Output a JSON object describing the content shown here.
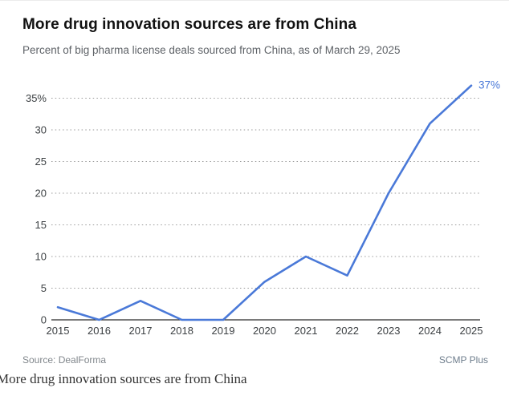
{
  "card": {
    "title": "More drug innovation sources are from China",
    "subtitle": "Percent of big pharma license deals sourced from China, as of March 29, 2025",
    "source": "Source: DealForma",
    "brand": "SCMP Plus"
  },
  "caption": "More drug innovation sources are from China",
  "chart_data": {
    "type": "line",
    "title": "More drug innovation sources are from China",
    "subtitle": "Percent of big pharma license deals sourced from China, as of March 29, 2025",
    "x": [
      2015,
      2016,
      2017,
      2018,
      2019,
      2020,
      2021,
      2022,
      2023,
      2024,
      2025
    ],
    "series": [
      {
        "name": "Percent of big pharma license deals sourced from China",
        "values": [
          2,
          0,
          3,
          0,
          0,
          6,
          10,
          7,
          20,
          31,
          37
        ]
      }
    ],
    "ylim": [
      0,
      37
    ],
    "y_ticks": [
      0,
      5,
      10,
      15,
      20,
      25,
      30,
      35
    ],
    "y_tick_labels": [
      "0",
      "5",
      "10",
      "15",
      "20",
      "25",
      "30",
      "35%"
    ],
    "end_annotation": "37%",
    "line_color": "#4A79D8",
    "grid_color": "#9a9a9a",
    "axis_color": "#2b2b2b",
    "tick_text_color": "#3c4043",
    "legend_position": "none",
    "grid": "horizontal-dotted"
  }
}
